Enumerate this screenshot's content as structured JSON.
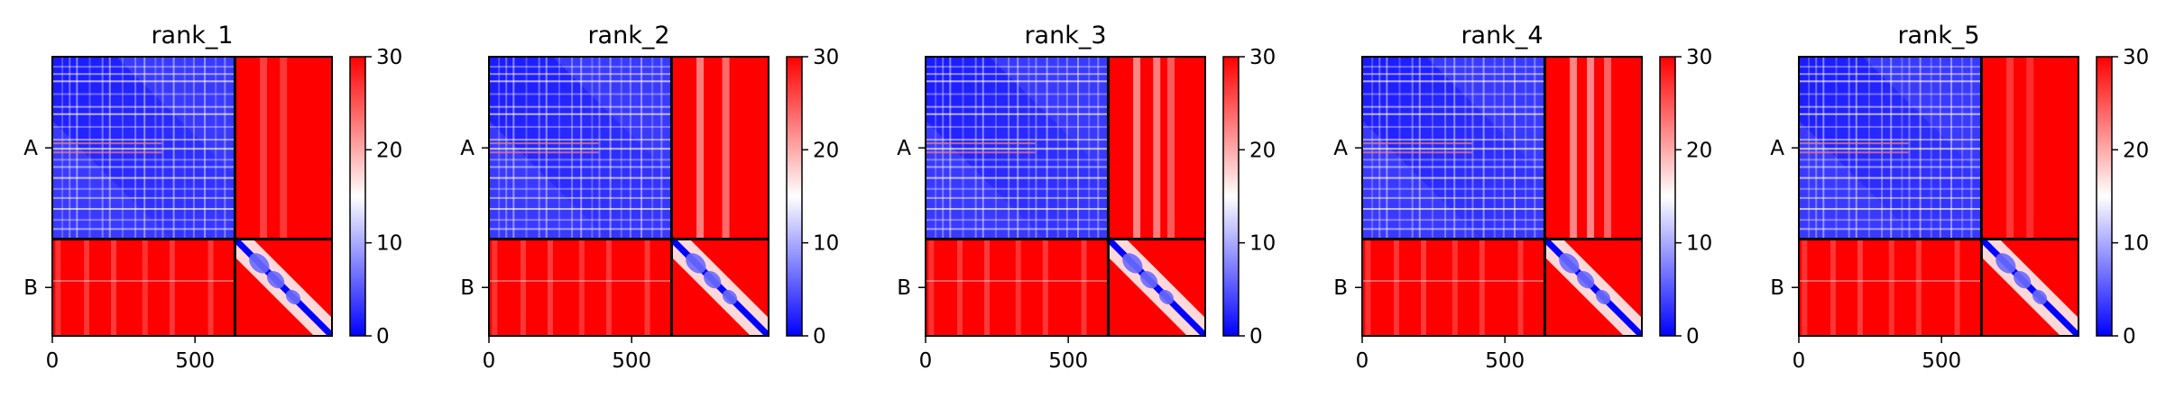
{
  "chart_data": {
    "type": "heatmap",
    "colormap": "bwr",
    "color_low": "#0000ff",
    "color_mid": "#ffffff",
    "color_high": "#ff0000",
    "colorbar_range": [
      0,
      30
    ],
    "colorbar_ticks": [
      "0",
      "10",
      "20",
      "30"
    ],
    "x_range": [
      0,
      980
    ],
    "x_ticks": [
      {
        "value": 0,
        "label": "0"
      },
      {
        "value": 500,
        "label": "500"
      }
    ],
    "chains": [
      {
        "label": "A",
        "start": 0,
        "end": 640
      },
      {
        "label": "B",
        "start": 640,
        "end": 980
      }
    ],
    "chain_boundary": 640,
    "panels": [
      {
        "title": "rank_1",
        "stripes": [
          [
            "A",
            20,
            0.55
          ],
          [
            "A",
            120,
            0.6
          ],
          [
            "A",
            215,
            0.65
          ],
          [
            "A",
            325,
            0.55
          ],
          [
            "A",
            420,
            0.6
          ],
          [
            "A",
            555,
            0.6
          ],
          [
            "B",
            740,
            0.35
          ],
          [
            "B",
            810,
            0.3
          ]
        ]
      },
      {
        "title": "rank_2",
        "stripes": [
          [
            "A",
            20,
            0.55
          ],
          [
            "A",
            120,
            0.6
          ],
          [
            "A",
            215,
            0.65
          ],
          [
            "A",
            325,
            0.55
          ],
          [
            "A",
            420,
            0.6
          ],
          [
            "A",
            555,
            0.6
          ],
          [
            "B",
            740,
            0.7
          ],
          [
            "B",
            830,
            0.6
          ]
        ]
      },
      {
        "title": "rank_3",
        "stripes": [
          [
            "A",
            20,
            0.55
          ],
          [
            "A",
            120,
            0.6
          ],
          [
            "A",
            215,
            0.65
          ],
          [
            "A",
            325,
            0.55
          ],
          [
            "A",
            420,
            0.6
          ],
          [
            "A",
            555,
            0.6
          ],
          [
            "B",
            740,
            0.75
          ],
          [
            "B",
            810,
            0.7
          ],
          [
            "B",
            860,
            0.5
          ]
        ]
      },
      {
        "title": "rank_4",
        "stripes": [
          [
            "A",
            20,
            0.55
          ],
          [
            "A",
            120,
            0.6
          ],
          [
            "A",
            215,
            0.65
          ],
          [
            "A",
            325,
            0.55
          ],
          [
            "A",
            420,
            0.6
          ],
          [
            "A",
            555,
            0.6
          ],
          [
            "B",
            740,
            0.75
          ],
          [
            "B",
            800,
            0.75
          ],
          [
            "B",
            860,
            0.55
          ]
        ]
      },
      {
        "title": "rank_5",
        "stripes": [
          [
            "A",
            20,
            0.55
          ],
          [
            "A",
            120,
            0.6
          ],
          [
            "A",
            215,
            0.65
          ],
          [
            "A",
            325,
            0.55
          ],
          [
            "A",
            420,
            0.6
          ],
          [
            "A",
            555,
            0.6
          ],
          [
            "B",
            740,
            0.3
          ],
          [
            "B",
            810,
            0.25
          ]
        ]
      }
    ]
  }
}
